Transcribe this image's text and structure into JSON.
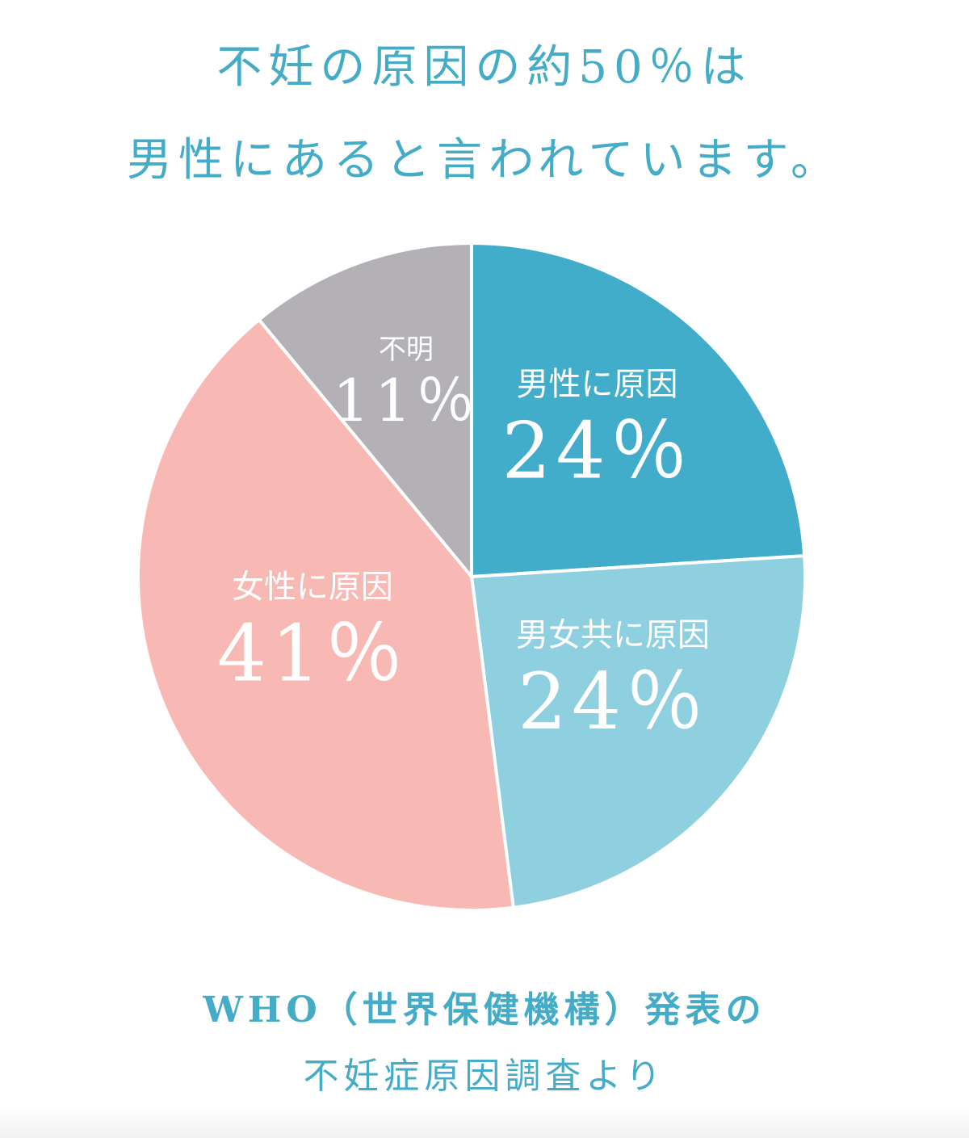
{
  "title": {
    "line1": "不妊の原因の約50％は",
    "line2": "男性にあると言われています。"
  },
  "source": {
    "line1": "WHO（世界保健機構）発表の",
    "line2": "不妊症原因調査より"
  },
  "chart_data": {
    "type": "pie",
    "title": "",
    "start": "12 o'clock, clockwise",
    "slices": [
      {
        "label": "男性に原因",
        "value": 24,
        "display": "24％",
        "color": "#41adca"
      },
      {
        "label": "男女共に原因",
        "value": 24,
        "display": "24％",
        "color": "#8ecfe0"
      },
      {
        "label": "女性に原因",
        "value": 41,
        "display": "41％",
        "color": "#f8b9b5"
      },
      {
        "label": "不明",
        "value": 11,
        "display": "11％",
        "color": "#b3b1b5"
      }
    ]
  }
}
